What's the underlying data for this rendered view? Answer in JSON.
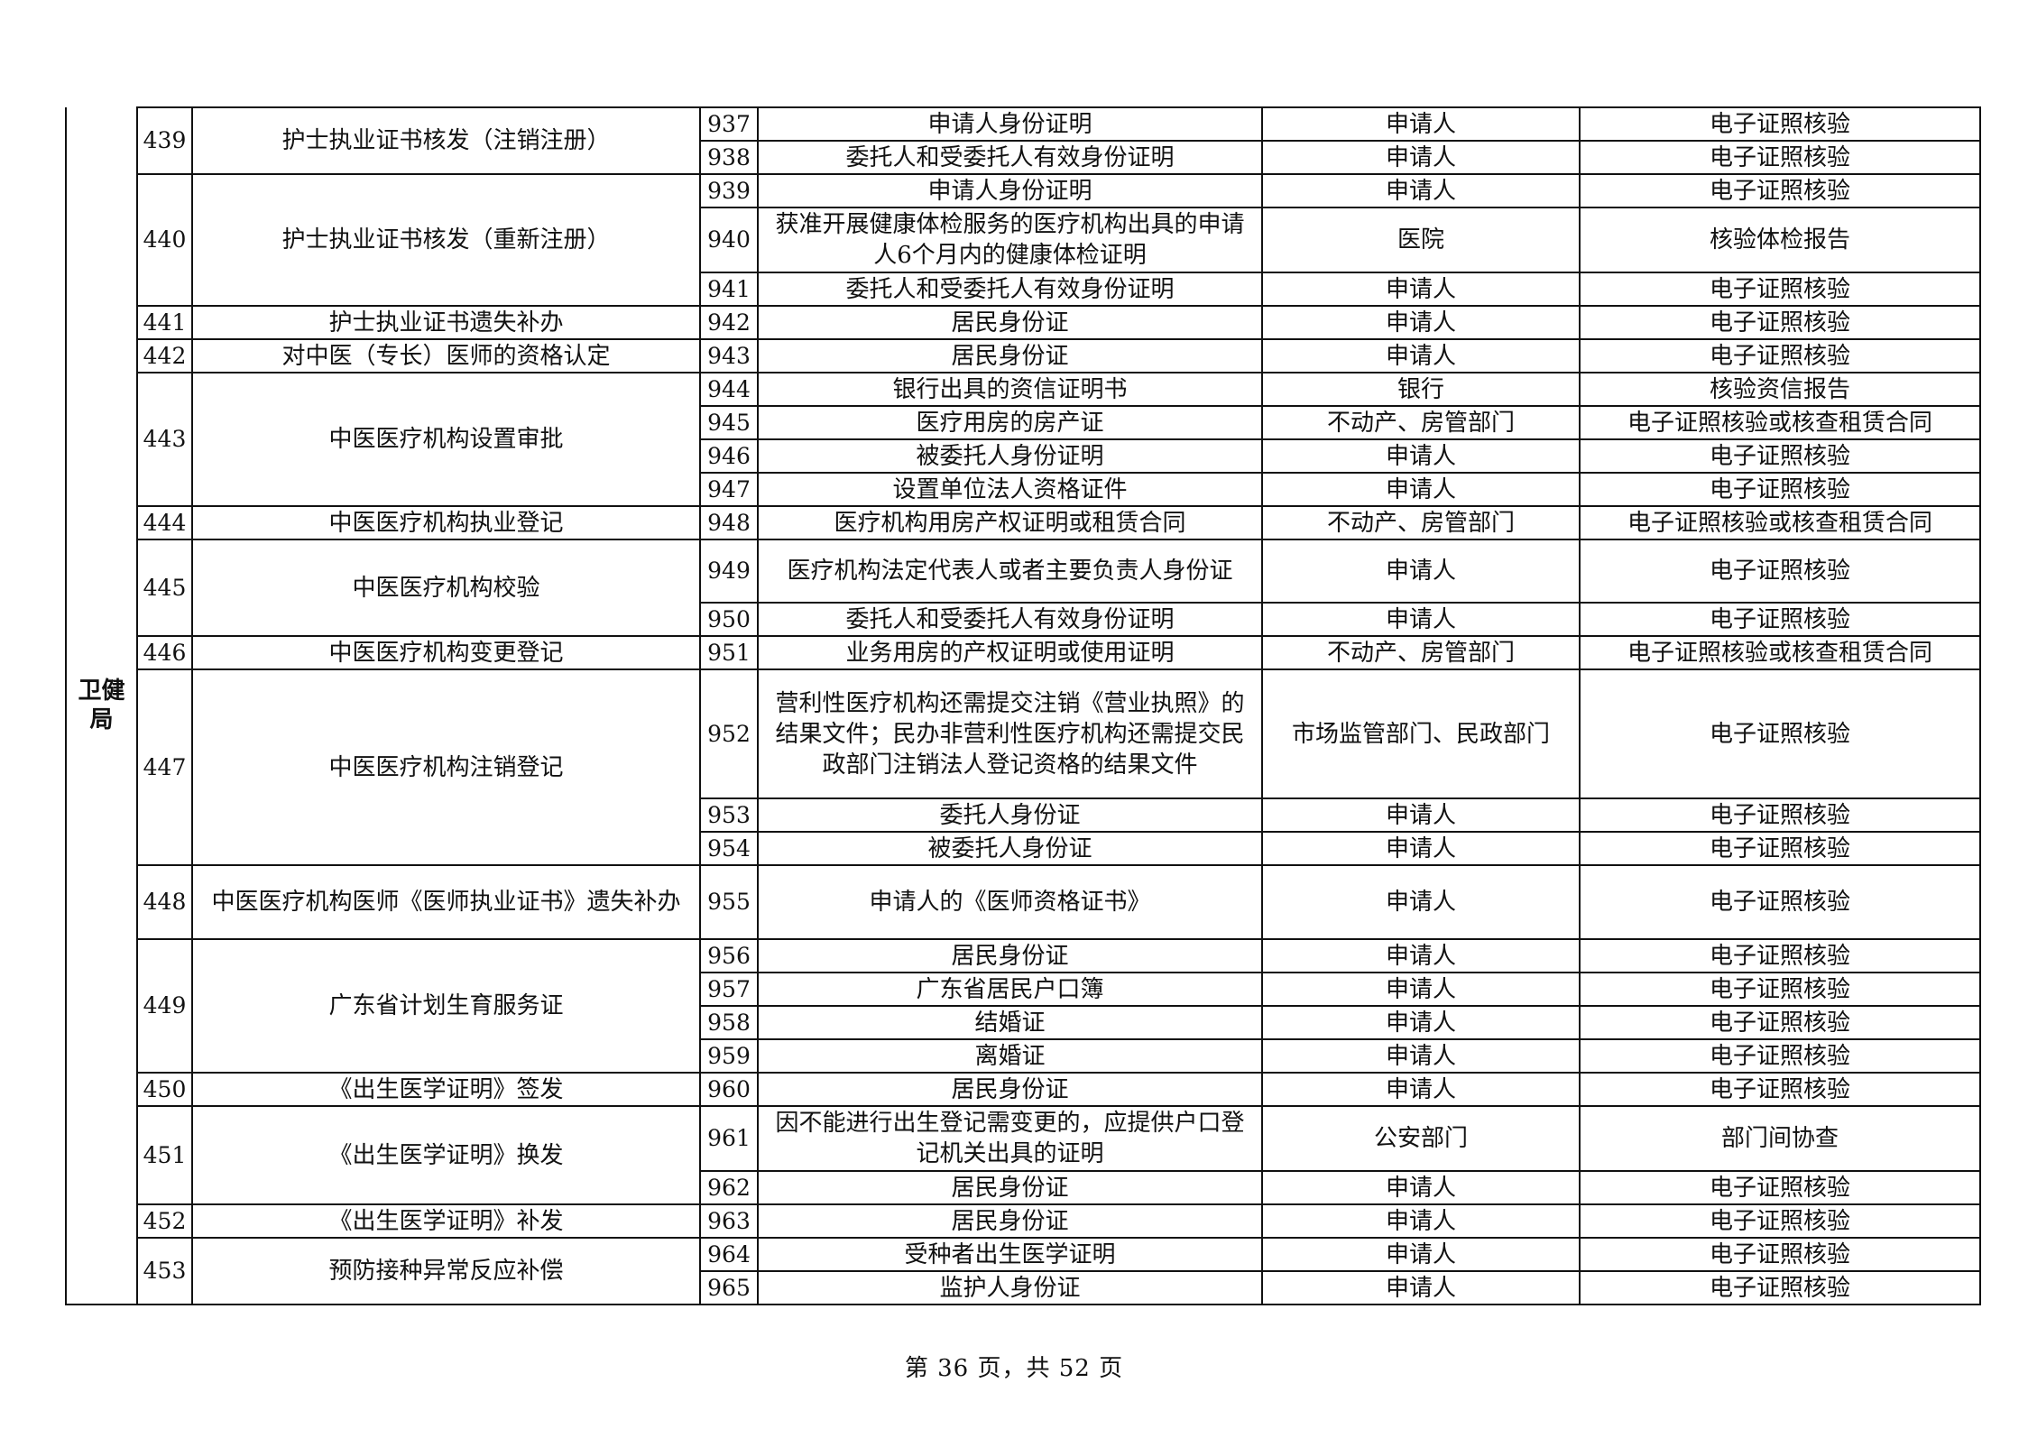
{
  "department": "卫健局",
  "items": [
    {
      "num": "439",
      "name": "护士执业证书核发（注销注册）",
      "materials": [
        {
          "seq": "937",
          "name": "申请人身份证明",
          "source": "申请人",
          "method": "电子证照核验"
        },
        {
          "seq": "938",
          "name": "委托人和受委托人有效身份证明",
          "source": "申请人",
          "method": "电子证照核验"
        }
      ]
    },
    {
      "num": "440",
      "name": "护士执业证书核发（重新注册）",
      "materials": [
        {
          "seq": "939",
          "name": "申请人身份证明",
          "source": "申请人",
          "method": "电子证照核验"
        },
        {
          "seq": "940",
          "name": "获准开展健康体检服务的医疗机构出具的申请人6个月内的健康体检证明",
          "source": "医院",
          "method": "核验体检报告"
        },
        {
          "seq": "941",
          "name": "委托人和受委托人有效身份证明",
          "source": "申请人",
          "method": "电子证照核验"
        }
      ]
    },
    {
      "num": "441",
      "name": "护士执业证书遗失补办",
      "materials": [
        {
          "seq": "942",
          "name": "居民身份证",
          "source": "申请人",
          "method": "电子证照核验"
        }
      ]
    },
    {
      "num": "442",
      "name": "对中医（专长）医师的资格认定",
      "materials": [
        {
          "seq": "943",
          "name": "居民身份证",
          "source": "申请人",
          "method": "电子证照核验"
        }
      ]
    },
    {
      "num": "443",
      "name": "中医医疗机构设置审批",
      "materials": [
        {
          "seq": "944",
          "name": "银行出具的资信证明书",
          "source": "银行",
          "method": "核验资信报告"
        },
        {
          "seq": "945",
          "name": "医疗用房的房产证",
          "source": "不动产、房管部门",
          "method": "电子证照核验或核查租赁合同"
        },
        {
          "seq": "946",
          "name": "被委托人身份证明",
          "source": "申请人",
          "method": "电子证照核验"
        },
        {
          "seq": "947",
          "name": "设置单位法人资格证件",
          "source": "申请人",
          "method": "电子证照核验"
        }
      ]
    },
    {
      "num": "444",
      "name": "中医医疗机构执业登记",
      "materials": [
        {
          "seq": "948",
          "name": "医疗机构用房产权证明或租赁合同",
          "source": "不动产、房管部门",
          "method": "电子证照核验或核查租赁合同"
        }
      ]
    },
    {
      "num": "445",
      "name": "中医医疗机构校验",
      "materials": [
        {
          "seq": "949",
          "name": "医疗机构法定代表人或者主要负责人身份证",
          "source": "申请人",
          "method": "电子证照核验"
        },
        {
          "seq": "950",
          "name": "委托人和受委托人有效身份证明",
          "source": "申请人",
          "method": "电子证照核验"
        }
      ]
    },
    {
      "num": "446",
      "name": "中医医疗机构变更登记",
      "materials": [
        {
          "seq": "951",
          "name": "业务用房的产权证明或使用证明",
          "source": "不动产、房管部门",
          "method": "电子证照核验或核查租赁合同"
        }
      ]
    },
    {
      "num": "447",
      "name": "中医医疗机构注销登记",
      "materials": [
        {
          "seq": "952",
          "name": "营利性医疗机构还需提交注销《营业执照》的结果文件；民办非营利性医疗机构还需提交民政部门注销法人登记资格的结果文件",
          "source": "市场监管部门、民政部门",
          "method": "电子证照核验"
        },
        {
          "seq": "953",
          "name": "委托人身份证",
          "source": "申请人",
          "method": "电子证照核验"
        },
        {
          "seq": "954",
          "name": "被委托人身份证",
          "source": "申请人",
          "method": "电子证照核验"
        }
      ]
    },
    {
      "num": "448",
      "name": "中医医疗机构医师《医师执业证书》遗失补办",
      "materials": [
        {
          "seq": "955",
          "name": "申请人的《医师资格证书》",
          "source": "申请人",
          "method": "电子证照核验"
        }
      ]
    },
    {
      "num": "449",
      "name": "广东省计划生育服务证",
      "materials": [
        {
          "seq": "956",
          "name": "居民身份证",
          "source": "申请人",
          "method": "电子证照核验"
        },
        {
          "seq": "957",
          "name": "广东省居民户口簿",
          "source": "申请人",
          "method": "电子证照核验"
        },
        {
          "seq": "958",
          "name": "结婚证",
          "source": "申请人",
          "method": "电子证照核验"
        },
        {
          "seq": "959",
          "name": "离婚证",
          "source": "申请人",
          "method": "电子证照核验"
        }
      ]
    },
    {
      "num": "450",
      "name": "《出生医学证明》签发",
      "materials": [
        {
          "seq": "960",
          "name": "居民身份证",
          "source": "申请人",
          "method": "电子证照核验"
        }
      ]
    },
    {
      "num": "451",
      "name": "《出生医学证明》换发",
      "materials": [
        {
          "seq": "961",
          "name": "因不能进行出生登记需变更的，应提供户口登记机关出具的证明",
          "source": "公安部门",
          "method": "部门间协查"
        },
        {
          "seq": "962",
          "name": "居民身份证",
          "source": "申请人",
          "method": "电子证照核验"
        }
      ]
    },
    {
      "num": "452",
      "name": "《出生医学证明》补发",
      "materials": [
        {
          "seq": "963",
          "name": "居民身份证",
          "source": "申请人",
          "method": "电子证照核验"
        }
      ]
    },
    {
      "num": "453",
      "name": "预防接种异常反应补偿",
      "materials": [
        {
          "seq": "964",
          "name": "受种者出生医学证明",
          "source": "申请人",
          "method": "电子证照核验"
        },
        {
          "seq": "965",
          "name": "监护人身份证",
          "source": "申请人",
          "method": "电子证照核验"
        }
      ]
    }
  ],
  "footer": "第 36 页，共 52 页"
}
